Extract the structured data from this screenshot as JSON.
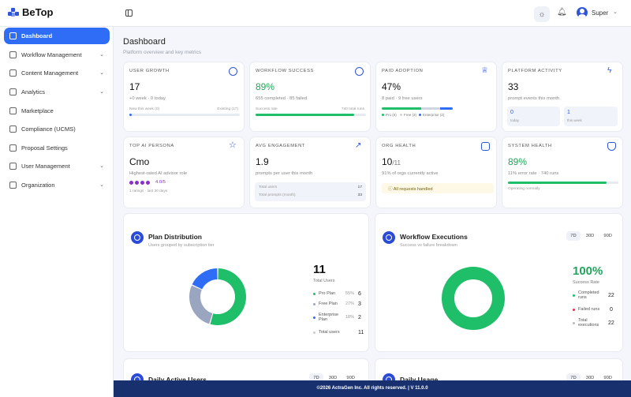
{
  "app": {
    "brand": "BeTop",
    "user": "Super"
  },
  "sidebar": {
    "items": [
      {
        "label": "Dashboard",
        "active": true,
        "icon": "home-icon"
      },
      {
        "label": "Workflow Management",
        "chevron": true,
        "icon": "workflow-icon"
      },
      {
        "label": "Content Management",
        "chevron": true,
        "icon": "folder-icon"
      },
      {
        "label": "Analytics",
        "chevron": true,
        "icon": "trend-icon"
      },
      {
        "label": "Marketplace",
        "icon": "inbox-icon"
      },
      {
        "label": "Compliance (UCMS)",
        "icon": "shield-icon"
      },
      {
        "label": "Proposal Settings",
        "icon": "document-icon"
      },
      {
        "label": "User Management",
        "chevron": true,
        "icon": "users-icon"
      },
      {
        "label": "Organization",
        "chevron": true,
        "icon": "gear-icon"
      }
    ]
  },
  "page": {
    "title": "Dashboard",
    "subtitle": "Platform overview and key metrics"
  },
  "cards": {
    "user_growth": {
      "title": "USER GROWTH",
      "value": "17",
      "line": "+0 week · 0 today",
      "left": "New this week (0)",
      "right": "Existing (17)",
      "bar": 0.02
    },
    "workflow_success": {
      "title": "WORKFLOW SUCCESS",
      "value": "89%",
      "line": "655 completed · 85 failed",
      "left": "Success rate",
      "right": "740 total runs",
      "bar": 0.89
    },
    "paid_adoption": {
      "title": "PAID ADOPTION",
      "value": "47%",
      "line": "8 paid · 9 free users",
      "legend": [
        "Pro (6)",
        "Free (3)",
        "Enterprise (2)"
      ],
      "bars": [
        0.55,
        0.27,
        0.18
      ]
    },
    "platform_activity": {
      "title": "PLATFORM ACTIVITY",
      "value": "33",
      "line": "prompt events this month",
      "today_val": "0",
      "today_lbl": "today",
      "week_val": "1",
      "week_lbl": "this week"
    },
    "top_persona": {
      "title": "TOP AI PERSONA",
      "value": "Cmo",
      "line": "Highest-rated AI advisor role",
      "rating": "4.0/5",
      "ratings_note": "1 ratings · last 30 days",
      "stars": 4
    },
    "avg_engagement": {
      "title": "AVG ENGAGEMENT",
      "value": "1.9",
      "line": "prompts per user this month",
      "row1_label": "Total users",
      "row1_val": "17",
      "row2_label": "Total prompts (month)",
      "row2_val": "33"
    },
    "org_health": {
      "title": "ORG HEALTH",
      "value": "10",
      "value_suffix": "/11",
      "line": "91% of orgs currently active",
      "status": "All requests handled"
    },
    "system_health": {
      "title": "SYSTEM HEALTH",
      "value": "89%",
      "line": "11% error rate · 740 runs",
      "note": "Operating normally",
      "bar": 0.89
    }
  },
  "plan_distribution": {
    "title": "Plan Distribution",
    "subtitle": "Users grouped by subscription tier",
    "total": "11",
    "total_label": "Total Users",
    "total_row_label": "Total users",
    "total_row_val": "11",
    "rows": [
      {
        "label": "Pro Plan",
        "pct": "55%",
        "num": "6",
        "color": "#1fbf6a"
      },
      {
        "label": "Free Plan",
        "pct": "27%",
        "num": "3",
        "color": "#9aa6bf"
      },
      {
        "label": "Enterprise Plan",
        "pct": "18%",
        "num": "2",
        "color": "#2f6df6"
      }
    ]
  },
  "workflow_exec": {
    "title": "Workflow Executions",
    "subtitle": "Success vs failure breakdown",
    "tabs": [
      "7D",
      "30D",
      "90D"
    ],
    "rate": "100%",
    "rate_label": "Success Rate",
    "rows": [
      {
        "label": "Completed runs",
        "num": "22",
        "color": "#1fbf6a"
      },
      {
        "label": "Failed runs",
        "num": "0",
        "color": "#e0334a"
      },
      {
        "label": "Total executions",
        "num": "22",
        "color": "#bbb"
      }
    ]
  },
  "dau": {
    "title": "Daily Active Users",
    "tabs": [
      "7D",
      "30D",
      "90D"
    ]
  },
  "usage": {
    "title": "Daily Usage",
    "tabs": [
      "7D",
      "30D",
      "90D"
    ]
  },
  "footer": "©2026 ActraGen Inc. All rights reserved. | V 11.0.0",
  "colors": {
    "accent": "#2f6df6",
    "green": "#1fbf6a",
    "purple": "#8b2fc9",
    "footer": "#18306d"
  }
}
